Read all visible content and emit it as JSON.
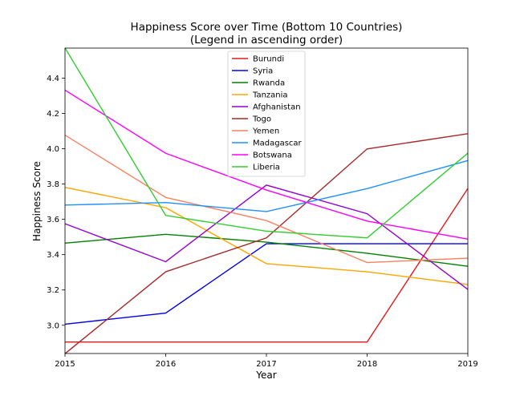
{
  "chart_data": {
    "type": "line",
    "title": "Happiness Score over Time (Bottom 10 Countries)",
    "subtitle": "(Legend in ascending order)",
    "xlabel": "Year",
    "ylabel": "Happiness Score",
    "x": [
      2015,
      2016,
      2017,
      2018,
      2019
    ],
    "xlim": [
      2015,
      2019
    ],
    "ylim": [
      2.84,
      4.57
    ],
    "xticks": [
      "2015",
      "2016",
      "2017",
      "2018",
      "2019"
    ],
    "yticks": [
      "3.0",
      "3.2",
      "3.4",
      "3.6",
      "3.8",
      "4.0",
      "4.2",
      "4.4"
    ],
    "grid": false,
    "legend_position": "top-center",
    "series": [
      {
        "name": "Burundi",
        "color": "#e41a1c",
        "values": [
          2.905,
          2.905,
          2.905,
          2.905,
          3.775
        ]
      },
      {
        "name": "Syria",
        "color": "#0000e6",
        "values": [
          3.006,
          3.069,
          3.462,
          3.462,
          3.462
        ]
      },
      {
        "name": "Rwanda",
        "color": "#008000",
        "values": [
          3.465,
          3.515,
          3.471,
          3.408,
          3.334
        ]
      },
      {
        "name": "Tanzania",
        "color": "#ffa500",
        "values": [
          3.781,
          3.666,
          3.349,
          3.303,
          3.231
        ]
      },
      {
        "name": "Afghanistan",
        "color": "#9400d3",
        "values": [
          3.575,
          3.36,
          3.794,
          3.632,
          3.203
        ]
      },
      {
        "name": "Togo",
        "color": "#a52a2a",
        "values": [
          2.839,
          3.303,
          3.495,
          3.999,
          4.085
        ]
      },
      {
        "name": "Yemen",
        "color": "#fa8060",
        "values": [
          4.077,
          3.724,
          3.593,
          3.355,
          3.38
        ]
      },
      {
        "name": "Madagascar",
        "color": "#1e90ff",
        "values": [
          3.681,
          3.695,
          3.644,
          3.774,
          3.933
        ]
      },
      {
        "name": "Botswana",
        "color": "#ff00ff",
        "values": [
          4.332,
          3.974,
          3.766,
          3.59,
          3.488
        ]
      },
      {
        "name": "Liberia",
        "color": "#32cd32",
        "values": [
          4.571,
          3.622,
          3.533,
          3.495,
          3.975
        ]
      }
    ]
  }
}
